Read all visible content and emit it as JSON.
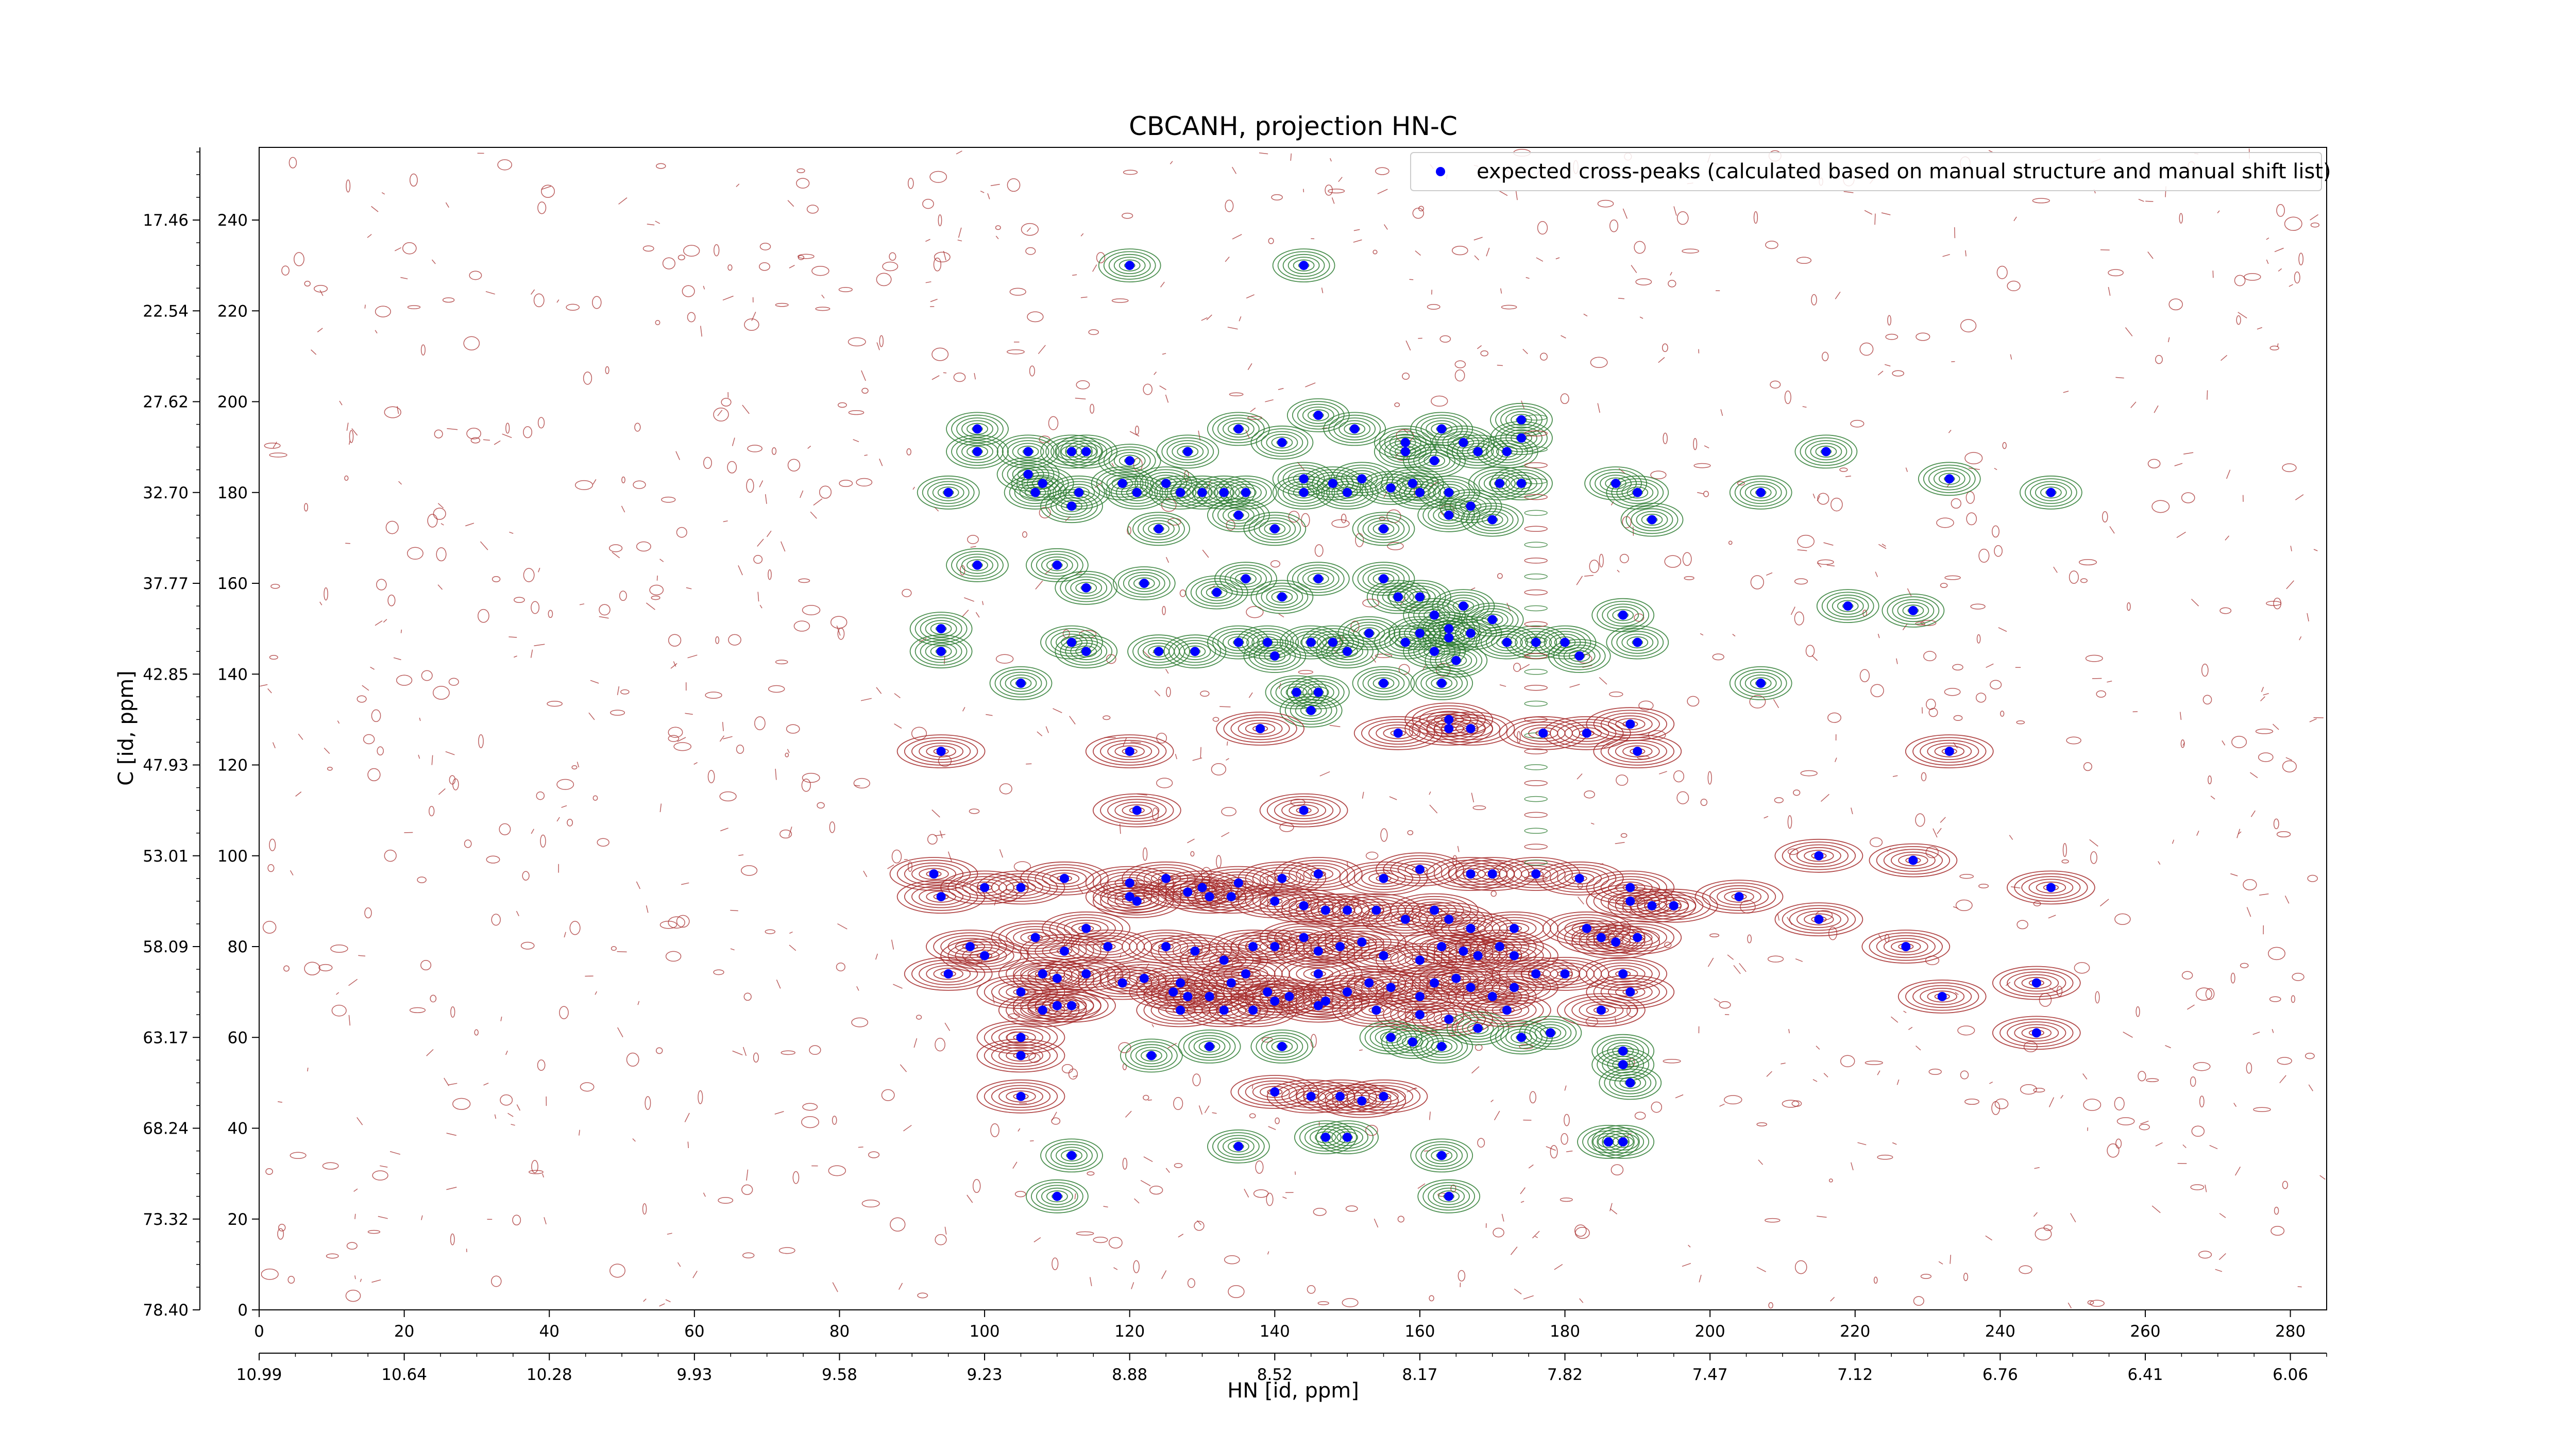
{
  "chart_data": {
    "type": "scatter",
    "title": "CBCANH, projection HN-C",
    "xlabel": "HN [id, ppm]",
    "ylabel": "C [id, ppm]",
    "xlim": [
      0,
      285
    ],
    "ylim": [
      0,
      256
    ],
    "x_ticks": [
      0,
      20,
      40,
      60,
      80,
      100,
      120,
      140,
      160,
      180,
      200,
      220,
      240,
      260,
      280
    ],
    "y_ticks": [
      0,
      20,
      40,
      60,
      80,
      100,
      120,
      140,
      160,
      180,
      200,
      220,
      240
    ],
    "x2_tick_labels": [
      "10.99",
      "10.64",
      "10.28",
      "9.93",
      "9.58",
      "9.23",
      "8.88",
      "8.52",
      "8.17",
      "7.82",
      "7.47",
      "7.12",
      "6.76",
      "6.41",
      "6.06"
    ],
    "y2_tick_labels": [
      "78.40",
      "73.32",
      "68.24",
      "63.17",
      "58.09",
      "53.01",
      "47.93",
      "42.85",
      "37.77",
      "32.70",
      "27.62",
      "22.54",
      "17.46"
    ],
    "legend": {
      "position": "top-right",
      "entries": [
        {
          "label": "expected cross-peaks (calculated based on manual structure and manual shift list)",
          "color": "#0000ff",
          "marker": "x"
        }
      ]
    },
    "colors": {
      "peak": "#0000ff",
      "positive_contour": "#2e7d32",
      "negative_contour": "#a52a2a"
    },
    "contours_drawn": true,
    "series": [
      {
        "name": "expected cross-peaks (calculated based on manual structure and manual shift list)",
        "points": [
          [
            120,
            230
          ],
          [
            144,
            230
          ],
          [
            99,
            194
          ],
          [
            99,
            189
          ],
          [
            106,
            189
          ],
          [
            106,
            184
          ],
          [
            108,
            182
          ],
          [
            112,
            189
          ],
          [
            114,
            189
          ],
          [
            120,
            187
          ],
          [
            128,
            189
          ],
          [
            135,
            194
          ],
          [
            141,
            191
          ],
          [
            146,
            197
          ],
          [
            151,
            194
          ],
          [
            158,
            191
          ],
          [
            163,
            194
          ],
          [
            166,
            191
          ],
          [
            168,
            189
          ],
          [
            172,
            189
          ],
          [
            174,
            192
          ],
          [
            174,
            196
          ],
          [
            158,
            189
          ],
          [
            162,
            187
          ],
          [
            95,
            180
          ],
          [
            107,
            180
          ],
          [
            113,
            180
          ],
          [
            119,
            182
          ],
          [
            121,
            180
          ],
          [
            125,
            182
          ],
          [
            127,
            180
          ],
          [
            130,
            180
          ],
          [
            133,
            180
          ],
          [
            136,
            180
          ],
          [
            144,
            180
          ],
          [
            144,
            183
          ],
          [
            148,
            182
          ],
          [
            150,
            180
          ],
          [
            152,
            183
          ],
          [
            156,
            181
          ],
          [
            159,
            182
          ],
          [
            160,
            180
          ],
          [
            164,
            180
          ],
          [
            167,
            177
          ],
          [
            171,
            182
          ],
          [
            174,
            182
          ],
          [
            187,
            182
          ],
          [
            190,
            180
          ],
          [
            192,
            174
          ],
          [
            207,
            180
          ],
          [
            216,
            189
          ],
          [
            233,
            183
          ],
          [
            247,
            180
          ],
          [
            112,
            177
          ],
          [
            124,
            172
          ],
          [
            135,
            175
          ],
          [
            140,
            172
          ],
          [
            155,
            172
          ],
          [
            164,
            175
          ],
          [
            170,
            174
          ],
          [
            99,
            164
          ],
          [
            110,
            164
          ],
          [
            114,
            159
          ],
          [
            122,
            160
          ],
          [
            132,
            158
          ],
          [
            136,
            161
          ],
          [
            141,
            157
          ],
          [
            146,
            161
          ],
          [
            155,
            161
          ],
          [
            157,
            157
          ],
          [
            160,
            157
          ],
          [
            162,
            153
          ],
          [
            164,
            150
          ],
          [
            166,
            155
          ],
          [
            170,
            152
          ],
          [
            219,
            155
          ],
          [
            228,
            154
          ],
          [
            94,
            150
          ],
          [
            94,
            145
          ],
          [
            112,
            147
          ],
          [
            114,
            145
          ],
          [
            124,
            145
          ],
          [
            129,
            145
          ],
          [
            135,
            147
          ],
          [
            139,
            147
          ],
          [
            140,
            144
          ],
          [
            145,
            147
          ],
          [
            148,
            147
          ],
          [
            150,
            145
          ],
          [
            153,
            149
          ],
          [
            158,
            147
          ],
          [
            160,
            149
          ],
          [
            162,
            145
          ],
          [
            164,
            148
          ],
          [
            167,
            149
          ],
          [
            172,
            147
          ],
          [
            176,
            147
          ],
          [
            180,
            147
          ],
          [
            182,
            144
          ],
          [
            188,
            153
          ],
          [
            190,
            147
          ],
          [
            105,
            138
          ],
          [
            143,
            136
          ],
          [
            146,
            136
          ],
          [
            145,
            132
          ],
          [
            155,
            138
          ],
          [
            163,
            138
          ],
          [
            165,
            143
          ],
          [
            207,
            138
          ],
          [
            138,
            128
          ],
          [
            157,
            127
          ],
          [
            164,
            130
          ],
          [
            164,
            128
          ],
          [
            167,
            128
          ],
          [
            177,
            127
          ],
          [
            183,
            127
          ],
          [
            189,
            129
          ],
          [
            94,
            123
          ],
          [
            120,
            123
          ],
          [
            190,
            123
          ],
          [
            233,
            123
          ],
          [
            121,
            110
          ],
          [
            144,
            110
          ],
          [
            93,
            96
          ],
          [
            100,
            93
          ],
          [
            94,
            91
          ],
          [
            105,
            93
          ],
          [
            111,
            95
          ],
          [
            120,
            94
          ],
          [
            125,
            95
          ],
          [
            130,
            93
          ],
          [
            135,
            94
          ],
          [
            141,
            95
          ],
          [
            146,
            96
          ],
          [
            155,
            95
          ],
          [
            160,
            97
          ],
          [
            167,
            96
          ],
          [
            170,
            96
          ],
          [
            176,
            96
          ],
          [
            182,
            95
          ],
          [
            189,
            93
          ],
          [
            215,
            100
          ],
          [
            228,
            99
          ],
          [
            247,
            93
          ],
          [
            120,
            91
          ],
          [
            121,
            90
          ],
          [
            128,
            92
          ],
          [
            131,
            91
          ],
          [
            134,
            91
          ],
          [
            140,
            90
          ],
          [
            144,
            89
          ],
          [
            147,
            88
          ],
          [
            150,
            88
          ],
          [
            154,
            88
          ],
          [
            158,
            86
          ],
          [
            162,
            88
          ],
          [
            164,
            86
          ],
          [
            167,
            84
          ],
          [
            173,
            84
          ],
          [
            183,
            84
          ],
          [
            185,
            82
          ],
          [
            189,
            90
          ],
          [
            192,
            89
          ],
          [
            195,
            89
          ],
          [
            204,
            91
          ],
          [
            215,
            86
          ],
          [
            98,
            80
          ],
          [
            100,
            78
          ],
          [
            107,
            82
          ],
          [
            111,
            79
          ],
          [
            114,
            84
          ],
          [
            117,
            80
          ],
          [
            125,
            80
          ],
          [
            129,
            79
          ],
          [
            133,
            77
          ],
          [
            137,
            80
          ],
          [
            140,
            80
          ],
          [
            144,
            82
          ],
          [
            146,
            79
          ],
          [
            149,
            80
          ],
          [
            152,
            81
          ],
          [
            155,
            78
          ],
          [
            160,
            77
          ],
          [
            163,
            80
          ],
          [
            166,
            79
          ],
          [
            168,
            78
          ],
          [
            171,
            80
          ],
          [
            173,
            78
          ],
          [
            176,
            74
          ],
          [
            180,
            74
          ],
          [
            187,
            81
          ],
          [
            190,
            82
          ],
          [
            227,
            80
          ],
          [
            95,
            74
          ],
          [
            105,
            70
          ],
          [
            108,
            74
          ],
          [
            110,
            73
          ],
          [
            114,
            74
          ],
          [
            119,
            72
          ],
          [
            122,
            73
          ],
          [
            127,
            72
          ],
          [
            131,
            69
          ],
          [
            134,
            72
          ],
          [
            136,
            74
          ],
          [
            139,
            70
          ],
          [
            142,
            69
          ],
          [
            146,
            74
          ],
          [
            150,
            70
          ],
          [
            153,
            72
          ],
          [
            156,
            71
          ],
          [
            160,
            69
          ],
          [
            162,
            72
          ],
          [
            165,
            73
          ],
          [
            167,
            71
          ],
          [
            170,
            69
          ],
          [
            173,
            71
          ],
          [
            188,
            74
          ],
          [
            189,
            70
          ],
          [
            232,
            69
          ],
          [
            245,
            72
          ],
          [
            126,
            70
          ],
          [
            128,
            69
          ],
          [
            140,
            68
          ],
          [
            147,
            68
          ],
          [
            108,
            66
          ],
          [
            110,
            67
          ],
          [
            112,
            67
          ],
          [
            127,
            66
          ],
          [
            133,
            66
          ],
          [
            137,
            66
          ],
          [
            146,
            67
          ],
          [
            154,
            66
          ],
          [
            160,
            65
          ],
          [
            164,
            64
          ],
          [
            168,
            62
          ],
          [
            172,
            66
          ],
          [
            185,
            66
          ],
          [
            105,
            60
          ],
          [
            105,
            56
          ],
          [
            123,
            56
          ],
          [
            131,
            58
          ],
          [
            141,
            58
          ],
          [
            156,
            60
          ],
          [
            159,
            59
          ],
          [
            163,
            58
          ],
          [
            174,
            60
          ],
          [
            178,
            61
          ],
          [
            188,
            57
          ],
          [
            188,
            54
          ],
          [
            189,
            50
          ],
          [
            245,
            61
          ],
          [
            105,
            47
          ],
          [
            140,
            48
          ],
          [
            145,
            47
          ],
          [
            149,
            47
          ],
          [
            152,
            46
          ],
          [
            155,
            47
          ],
          [
            112,
            34
          ],
          [
            135,
            36
          ],
          [
            147,
            38
          ],
          [
            150,
            38
          ],
          [
            163,
            34
          ],
          [
            186,
            37
          ],
          [
            188,
            37
          ],
          [
            110,
            25
          ],
          [
            164,
            25
          ]
        ]
      }
    ]
  }
}
